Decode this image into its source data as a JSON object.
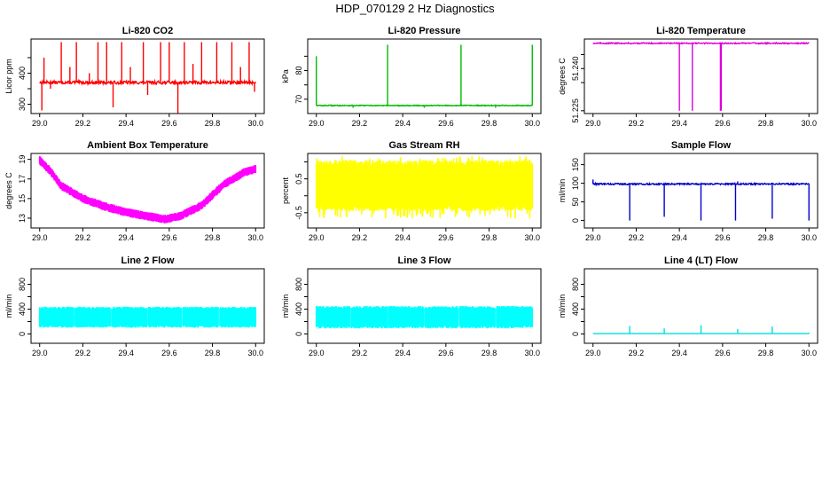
{
  "figure": {
    "title": "HDP_070129 2 Hz Diagnostics"
  },
  "chart_data": [
    {
      "id": "co2",
      "type": "line",
      "title": "Li-820 CO2",
      "ylabel": "Licor ppm",
      "color": "#ff0000",
      "xlim": [
        29.0,
        30.0
      ],
      "ylim": [
        270,
        510
      ],
      "xticks": [
        29.0,
        29.2,
        29.4,
        29.6,
        29.8,
        30.0
      ],
      "xtick_labels": [
        "29.0",
        "29.2",
        "29.4",
        "29.6",
        "29.8",
        "30.0"
      ],
      "yticks": [
        300,
        350,
        400,
        450
      ],
      "ytick_labels": [
        "300",
        "",
        "400",
        ""
      ],
      "baseline": 370,
      "noise": 5,
      "spikes": [
        {
          "x": 29.01,
          "y": 280
        },
        {
          "x": 29.02,
          "y": 450
        },
        {
          "x": 29.05,
          "y": 350
        },
        {
          "x": 29.1,
          "y": 500
        },
        {
          "x": 29.14,
          "y": 420
        },
        {
          "x": 29.17,
          "y": 500
        },
        {
          "x": 29.23,
          "y": 400
        },
        {
          "x": 29.27,
          "y": 500
        },
        {
          "x": 29.31,
          "y": 500
        },
        {
          "x": 29.34,
          "y": 290
        },
        {
          "x": 29.38,
          "y": 500
        },
        {
          "x": 29.42,
          "y": 420
        },
        {
          "x": 29.48,
          "y": 500
        },
        {
          "x": 29.5,
          "y": 330
        },
        {
          "x": 29.56,
          "y": 500
        },
        {
          "x": 29.6,
          "y": 500
        },
        {
          "x": 29.64,
          "y": 270
        },
        {
          "x": 29.67,
          "y": 500
        },
        {
          "x": 29.71,
          "y": 430
        },
        {
          "x": 29.75,
          "y": 500
        },
        {
          "x": 29.82,
          "y": 500
        },
        {
          "x": 29.89,
          "y": 500
        },
        {
          "x": 29.93,
          "y": 420
        },
        {
          "x": 29.97,
          "y": 500
        },
        {
          "x": 29.995,
          "y": 340
        }
      ]
    },
    {
      "id": "pressure",
      "type": "line",
      "title": "Li-820 Pressure",
      "ylabel": "kPa",
      "color": "#00bb00",
      "xlim": [
        29.0,
        30.0
      ],
      "ylim": [
        65,
        91
      ],
      "xticks": [
        29.0,
        29.2,
        29.4,
        29.6,
        29.8,
        30.0
      ],
      "xtick_labels": [
        "29.0",
        "29.2",
        "29.4",
        "29.6",
        "29.8",
        "30.0"
      ],
      "yticks": [
        70,
        75,
        80,
        85
      ],
      "ytick_labels": [
        "70",
        "",
        "80",
        ""
      ],
      "baseline": 67.8,
      "noise": 0.15,
      "spikes": [
        {
          "x": 29.0,
          "y": 85
        },
        {
          "x": 29.33,
          "y": 89
        },
        {
          "x": 29.67,
          "y": 89
        },
        {
          "x": 30.0,
          "y": 89
        },
        {
          "x": 29.17,
          "y": 67
        },
        {
          "x": 29.5,
          "y": 67
        },
        {
          "x": 29.83,
          "y": 67
        }
      ]
    },
    {
      "id": "licor_temp",
      "type": "line",
      "title": "Li-820 Temperature",
      "ylabel": "degrees C",
      "color": "#dd00dd",
      "xlim": [
        29.0,
        30.0
      ],
      "ylim": [
        51.224,
        51.2505
      ],
      "xticks": [
        29.0,
        29.2,
        29.4,
        29.6,
        29.8,
        30.0
      ],
      "xtick_labels": [
        "29.0",
        "29.2",
        "29.4",
        "29.6",
        "29.8",
        "30.0"
      ],
      "yticks": [
        51.225,
        51.235,
        51.24,
        51.245
      ],
      "ytick_labels": [
        "51.225",
        "",
        "51.240",
        ""
      ],
      "baseline": 51.249,
      "noise": 0.0002,
      "spikes": [
        {
          "x": 29.4,
          "y": 51.225
        },
        {
          "x": 29.46,
          "y": 51.225
        },
        {
          "x": 29.59,
          "y": 51.225
        },
        {
          "x": 29.594,
          "y": 51.225
        }
      ]
    },
    {
      "id": "ambient_temp",
      "type": "band",
      "title": "Ambient Box Temperature",
      "ylabel": "degrees C",
      "color": "#ff00ff",
      "xlim": [
        29.0,
        30.0
      ],
      "ylim": [
        12.0,
        19.6
      ],
      "xticks": [
        29.0,
        29.2,
        29.4,
        29.6,
        29.8,
        30.0
      ],
      "xtick_labels": [
        "29.0",
        "29.2",
        "29.4",
        "29.6",
        "29.8",
        "30.0"
      ],
      "yticks": [
        13,
        15,
        17,
        19
      ],
      "ytick_labels": [
        "13",
        "15",
        "17",
        "19"
      ],
      "x": [
        29.0,
        29.05,
        29.1,
        29.2,
        29.3,
        29.4,
        29.5,
        29.58,
        29.65,
        29.75,
        29.85,
        29.95,
        30.0
      ],
      "y": [
        18.9,
        17.8,
        16.3,
        15.0,
        14.2,
        13.6,
        13.2,
        12.9,
        13.2,
        14.3,
        16.4,
        17.7,
        18.0
      ],
      "band_halfwidth": 0.45
    },
    {
      "id": "rh",
      "type": "band",
      "title": "Gas Stream RH",
      "ylabel": "percent",
      "color": "#ffff00",
      "xlim": [
        29.0,
        30.0
      ],
      "ylim": [
        -0.95,
        1.25
      ],
      "xticks": [
        29.0,
        29.2,
        29.4,
        29.6,
        29.8,
        30.0
      ],
      "xtick_labels": [
        "29.0",
        "29.2",
        "29.4",
        "29.6",
        "29.8",
        "30.0"
      ],
      "yticks": [
        -0.5,
        0.0,
        0.5,
        1.0
      ],
      "ytick_labels": [
        "-0.5",
        "",
        "0.5",
        ""
      ],
      "x": [
        29.0,
        30.0
      ],
      "y": [
        0.3,
        0.3
      ],
      "band_lower": -0.45,
      "band_upper": 1.05
    },
    {
      "id": "sample_flow",
      "type": "line",
      "title": "Sample Flow",
      "ylabel": "ml/min",
      "color": "#0000cc",
      "xlim": [
        29.0,
        30.0
      ],
      "ylim": [
        -20,
        180
      ],
      "xticks": [
        29.0,
        29.2,
        29.4,
        29.6,
        29.8,
        30.0
      ],
      "xtick_labels": [
        "29.0",
        "29.2",
        "29.4",
        "29.6",
        "29.8",
        "30.0"
      ],
      "yticks": [
        0,
        50,
        100,
        150
      ],
      "ytick_labels": [
        "0",
        "50",
        "100",
        "150"
      ],
      "baseline": 98,
      "noise": 2,
      "spikes": [
        {
          "x": 29.0,
          "y": 110
        },
        {
          "x": 29.17,
          "y": 0
        },
        {
          "x": 29.33,
          "y": 10
        },
        {
          "x": 29.5,
          "y": 0
        },
        {
          "x": 29.66,
          "y": 0
        },
        {
          "x": 29.67,
          "y": 105
        },
        {
          "x": 29.83,
          "y": 5
        },
        {
          "x": 30.0,
          "y": 0
        }
      ]
    },
    {
      "id": "line2",
      "type": "band",
      "title": "Line 2 Flow",
      "ylabel": "ml/min",
      "color": "#00ffff",
      "xlim": [
        29.0,
        30.0
      ],
      "ylim": [
        -150,
        1050
      ],
      "xticks": [
        29.0,
        29.2,
        29.4,
        29.6,
        29.8,
        30.0
      ],
      "xtick_labels": [
        "29.0",
        "29.2",
        "29.4",
        "29.6",
        "29.8",
        "30.0"
      ],
      "yticks": [
        0,
        200,
        400,
        600,
        800
      ],
      "ytick_labels": [
        "0",
        "",
        "400",
        "",
        "800"
      ],
      "x": [
        29.0,
        30.0
      ],
      "y": [
        290,
        290
      ],
      "band_lower": 100,
      "band_upper": 440,
      "gaps": [
        29.16,
        29.33,
        29.5,
        29.66,
        29.83
      ]
    },
    {
      "id": "line3",
      "type": "band",
      "title": "Line 3 Flow",
      "ylabel": "ml/min",
      "color": "#00ffff",
      "xlim": [
        29.0,
        30.0
      ],
      "ylim": [
        -150,
        1050
      ],
      "xticks": [
        29.0,
        29.2,
        29.4,
        29.6,
        29.8,
        30.0
      ],
      "xtick_labels": [
        "29.0",
        "29.2",
        "29.4",
        "29.6",
        "29.8",
        "30.0"
      ],
      "yticks": [
        0,
        200,
        400,
        600,
        800
      ],
      "ytick_labels": [
        "0",
        "",
        "400",
        "",
        "800"
      ],
      "x": [
        29.0,
        30.0
      ],
      "y": [
        290,
        290
      ],
      "band_lower": 90,
      "band_upper": 450,
      "gaps": [
        29.16,
        29.33,
        29.5,
        29.66,
        29.83
      ]
    },
    {
      "id": "line4",
      "type": "line",
      "title": "Line 4 (LT) Flow",
      "ylabel": "ml/min",
      "color": "#00dddd",
      "xlim": [
        29.0,
        30.0
      ],
      "ylim": [
        -150,
        1050
      ],
      "xticks": [
        29.0,
        29.2,
        29.4,
        29.6,
        29.8,
        30.0
      ],
      "xtick_labels": [
        "29.0",
        "29.2",
        "29.4",
        "29.6",
        "29.8",
        "30.0"
      ],
      "yticks": [
        0,
        200,
        400,
        600,
        800
      ],
      "ytick_labels": [
        "0",
        "",
        "400",
        "",
        "800"
      ],
      "baseline": 5,
      "noise": 0,
      "spikes": [
        {
          "x": 29.17,
          "y": 130
        },
        {
          "x": 29.33,
          "y": 90
        },
        {
          "x": 29.5,
          "y": 140
        },
        {
          "x": 29.67,
          "y": 80
        },
        {
          "x": 29.83,
          "y": 120
        },
        {
          "x": 30.0,
          "y": 20
        }
      ]
    }
  ]
}
